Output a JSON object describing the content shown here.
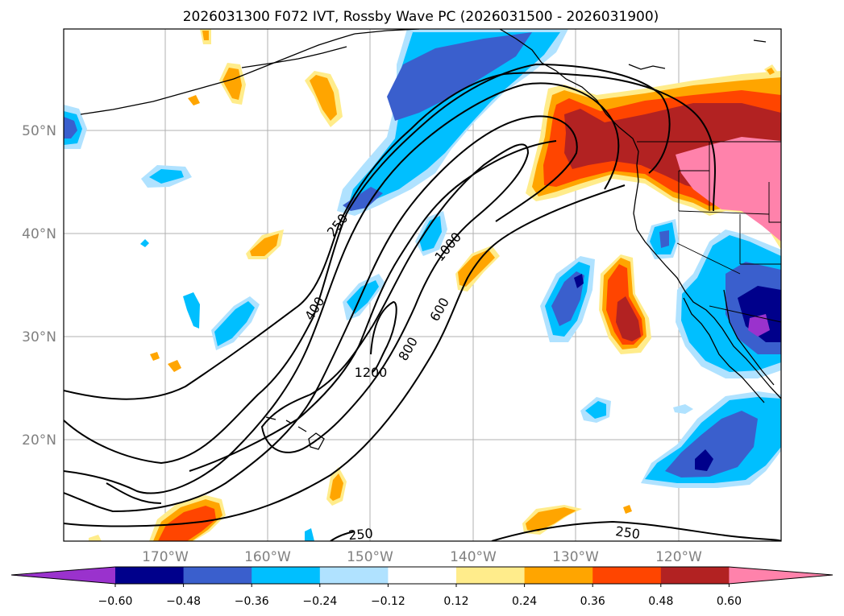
{
  "title": "2026031300 F072 IVT, Rossby Wave PC (2026031500 - 2026031900)",
  "map": {
    "lat_labels": [
      "50°N",
      "40°N",
      "30°N",
      "20°N"
    ],
    "lon_labels": [
      "170°W",
      "160°W",
      "150°W",
      "140°W",
      "130°W",
      "120°W"
    ],
    "contour_labels": [
      "250",
      "400",
      "1000",
      "600",
      "800",
      "1200",
      "250",
      "250"
    ]
  },
  "colorbar": {
    "ticks": [
      "−0.60",
      "−0.48",
      "−0.36",
      "−0.24",
      "−0.12",
      "0.12",
      "0.24",
      "0.36",
      "0.48",
      "0.60"
    ],
    "colors": [
      "#9a32cd",
      "#00008b",
      "#3a5fcd",
      "#00bfff",
      "#b0e2ff",
      "#ffffff",
      "#ffec8b",
      "#ffa500",
      "#ff4500",
      "#b22222",
      "#ff82ab"
    ],
    "extend": "both"
  }
}
